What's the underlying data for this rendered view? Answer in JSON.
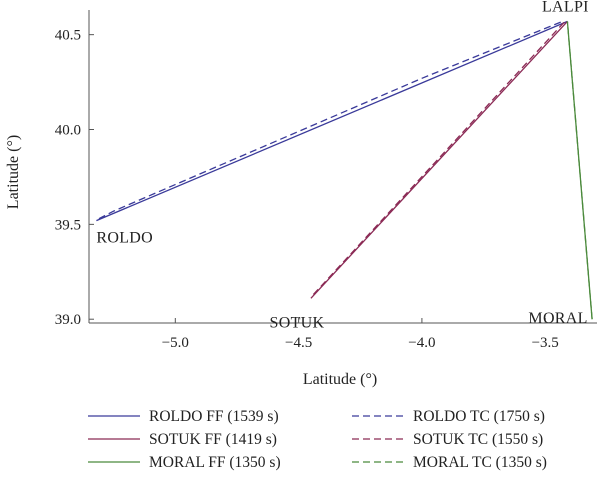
{
  "chart_data": {
    "type": "line",
    "xlabel": "Latitude (°)",
    "ylabel": "Latitude (°)",
    "xlim": [
      -5.35,
      -3.29
    ],
    "ylim": [
      38.98,
      40.63
    ],
    "xticks": [
      "−5.0",
      "−4.5",
      "−4.0",
      "−3.5"
    ],
    "xtick_values": [
      -5.0,
      -4.5,
      -4.0,
      -3.5
    ],
    "yticks": [
      "39.0",
      "39.5",
      "40.0",
      "40.5"
    ],
    "ytick_values": [
      39.0,
      39.5,
      40.0,
      40.5
    ],
    "waypoints": [
      {
        "name": "LALPI",
        "lon": -3.41,
        "lat": 40.57
      },
      {
        "name": "ROLDO",
        "lon": -5.32,
        "lat": 39.52
      },
      {
        "name": "SOTUK",
        "lon": -4.45,
        "lat": 39.11
      },
      {
        "name": "MORAL",
        "lon": -3.31,
        "lat": 39.0
      }
    ],
    "series": [
      {
        "name": "ROLDO FF (1539 s)",
        "color": "#3a3a9a",
        "dash": "solid",
        "x": [
          -5.32,
          -3.41
        ],
        "y": [
          39.52,
          40.57
        ]
      },
      {
        "name": "ROLDO TC (1750 s)",
        "color": "#3a3a9a",
        "dash": "dashed",
        "x": [
          -5.31,
          -5.25,
          -4.0,
          -3.43
        ],
        "y": [
          39.53,
          39.57,
          40.27,
          40.57
        ]
      },
      {
        "name": "SOTUK FF (1419 s)",
        "color": "#8b2a55",
        "dash": "solid",
        "x": [
          -4.45,
          -3.41
        ],
        "y": [
          39.11,
          40.57
        ]
      },
      {
        "name": "SOTUK TC (1550 s)",
        "color": "#8b2a55",
        "dash": "dashed",
        "x": [
          -4.44,
          -3.42
        ],
        "y": [
          39.13,
          40.57
        ]
      },
      {
        "name": "MORAL FF (1350 s)",
        "color": "#4b8a3c",
        "dash": "solid",
        "x": [
          -3.31,
          -3.41
        ],
        "y": [
          39.0,
          40.57
        ]
      },
      {
        "name": "MORAL TC (1350 s)",
        "color": "#4b8a3c",
        "dash": "dashed",
        "x": [
          -3.31,
          -3.41
        ],
        "y": [
          39.0,
          40.57
        ]
      }
    ],
    "legend_placement": "bottom"
  }
}
